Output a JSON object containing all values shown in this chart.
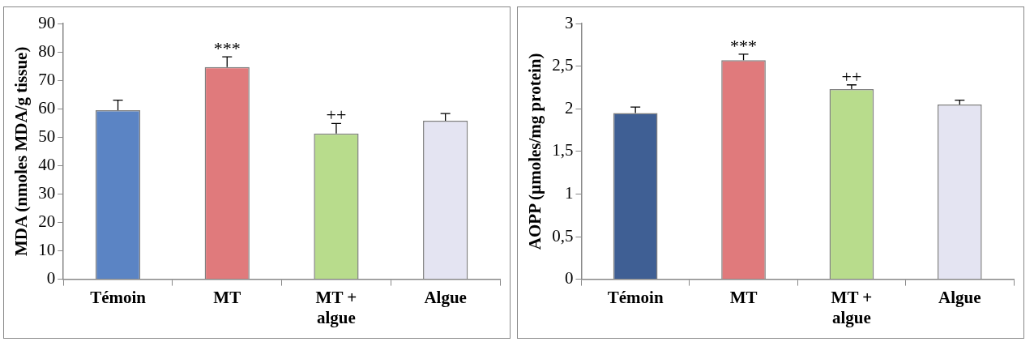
{
  "chart_data": [
    {
      "type": "bar",
      "ylabel": "MDA (nmoles MDA/g tissue)",
      "categories": [
        "Témoin",
        "MT",
        "MT + algue",
        "Algue"
      ],
      "values": [
        59.5,
        74.7,
        51.3,
        55.8
      ],
      "colors": [
        "#5b84c4",
        "#e07a7c",
        "#b8dc8c",
        "#e4e4f2"
      ],
      "errors": [
        [
          59.5,
          63
        ],
        [
          74.7,
          78.3
        ],
        [
          51.3,
          54.8
        ],
        [
          55.8,
          58.3
        ]
      ],
      "ylim": [
        0,
        90
      ],
      "yticks": [
        0,
        10,
        20,
        30,
        40,
        50,
        60,
        70,
        80,
        90
      ],
      "grid": false,
      "legend": false,
      "annotations": [
        {
          "text": "***",
          "x": "MT",
          "y": 78.3
        },
        {
          "text": "++",
          "x": "MT + algue",
          "y": 54.8
        }
      ]
    },
    {
      "type": "bar",
      "ylabel": "AOPP (µmoles/mg protein)",
      "categories": [
        "Témoin",
        "MT",
        "MT + algue",
        "Algue"
      ],
      "values": [
        1.95,
        2.57,
        2.23,
        2.05
      ],
      "colors": [
        "#3f5f94",
        "#e07a7c",
        "#b8dc8c",
        "#e4e4f2"
      ],
      "errors": [
        [
          1.95,
          2.02
        ],
        [
          2.57,
          2.64
        ],
        [
          2.23,
          2.28
        ],
        [
          2.05,
          2.1
        ]
      ],
      "ylim": [
        0,
        3
      ],
      "yticks": [
        0,
        {
          "value": 0.5,
          "label": "0,5"
        },
        1,
        {
          "value": 1.5,
          "label": "1,5"
        },
        2,
        {
          "value": 2.5,
          "label": "2,5"
        },
        3
      ],
      "grid": false,
      "legend": false,
      "annotations": [
        {
          "text": "***",
          "x": "MT",
          "y": 2.64
        },
        {
          "text": "++",
          "x": "MT + algue",
          "y": 2.28
        }
      ]
    }
  ]
}
